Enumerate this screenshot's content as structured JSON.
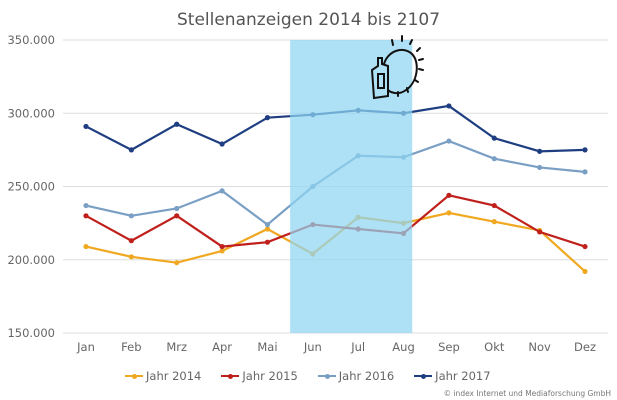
{
  "chart_data": {
    "type": "line",
    "title": "Stellenanzeigen 2014 bis 2107",
    "categories": [
      "Jan",
      "Feb",
      "Mrz",
      "Apr",
      "Mai",
      "Jun",
      "Jul",
      "Aug",
      "Sep",
      "Okt",
      "Nov",
      "Dez"
    ],
    "ylim": [
      150000,
      350000
    ],
    "yticks": [
      "150.000",
      "200.000",
      "250.000",
      "300.000",
      "350.000"
    ],
    "ytick_values": [
      150000,
      200000,
      250000,
      300000,
      350000
    ],
    "grid": true,
    "legend_position": "bottom",
    "highlight": {
      "from": "Jun",
      "to": "Aug",
      "color": "#8fd6f2",
      "icon": "sun-and-sunscreen-icon"
    },
    "series": [
      {
        "name": "Jahr 2014",
        "color": "#f0a820",
        "values": [
          209000,
          202000,
          198000,
          206000,
          221000,
          204000,
          229000,
          225000,
          232000,
          226000,
          220000,
          192000
        ]
      },
      {
        "name": "Jahr 2015",
        "color": "#c0201c",
        "values": [
          230000,
          213000,
          230000,
          209000,
          212000,
          224000,
          221000,
          218000,
          244000,
          237000,
          219000,
          209000
        ]
      },
      {
        "name": "Jahr 2016",
        "color": "#7a9fc4",
        "values": [
          237000,
          230000,
          235000,
          247000,
          224000,
          250000,
          271000,
          270000,
          281000,
          269000,
          263000,
          260000
        ]
      },
      {
        "name": "Jahr 2017",
        "color": "#1f3e82",
        "values": [
          291000,
          275000,
          292500,
          279000,
          297000,
          299000,
          302000,
          300000,
          305000,
          283000,
          274000,
          275000
        ]
      }
    ]
  },
  "credit": "© index Internet und Mediaforschung GmbH"
}
